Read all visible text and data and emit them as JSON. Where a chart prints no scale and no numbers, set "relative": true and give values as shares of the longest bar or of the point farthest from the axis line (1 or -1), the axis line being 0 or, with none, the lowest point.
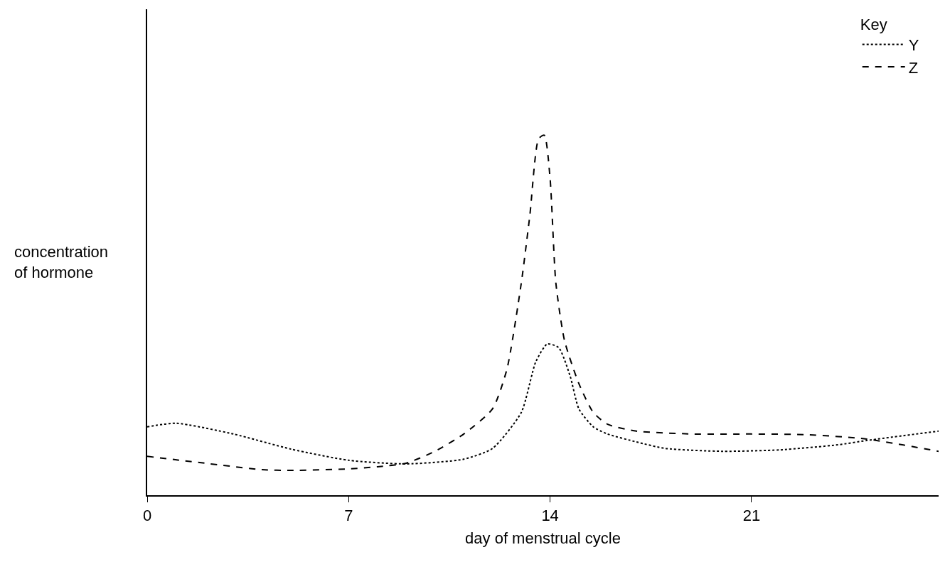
{
  "chart_data": {
    "type": "line",
    "xlabel": "day of menstrual cycle",
    "ylabel": "concentration\nof hormone",
    "legend_title": "Key",
    "relative": true,
    "xlim": [
      0,
      27.5
    ],
    "xticks": [
      0,
      7,
      14,
      21
    ],
    "grid": false,
    "legend": "top right",
    "marker": "none",
    "series": [
      {
        "name": "Y",
        "color": "#000000",
        "line_style": "dotted",
        "x": [
          0,
          1,
          3,
          5,
          7,
          9,
          11,
          12,
          13,
          13.5,
          13.9,
          14.3,
          14.7,
          15,
          15.5,
          16,
          17,
          18,
          20,
          22,
          24,
          25,
          27.5
        ],
        "values": [
          0.19,
          0.2,
          0.17,
          0.128,
          0.097,
          0.087,
          0.1,
          0.13,
          0.23,
          0.37,
          0.42,
          0.41,
          0.33,
          0.24,
          0.19,
          0.17,
          0.148,
          0.13,
          0.122,
          0.126,
          0.14,
          0.152,
          0.178
        ]
      },
      {
        "name": "Z",
        "color": "#000000",
        "line_style": "dashed",
        "x": [
          0,
          2,
          4,
          5,
          7,
          8,
          9,
          10,
          11,
          12,
          12.5,
          13,
          13.3,
          13.6,
          13.8,
          14,
          14.2,
          14.5,
          15,
          15.5,
          16,
          17,
          19,
          21,
          23,
          25,
          27.5
        ],
        "values": [
          0.108,
          0.089,
          0.071,
          0.069,
          0.073,
          0.079,
          0.089,
          0.122,
          0.17,
          0.24,
          0.35,
          0.59,
          0.78,
          0.99,
          1,
          0.88,
          0.59,
          0.43,
          0.31,
          0.23,
          0.197,
          0.178,
          0.17,
          0.17,
          0.168,
          0.156,
          0.122
        ]
      }
    ]
  }
}
